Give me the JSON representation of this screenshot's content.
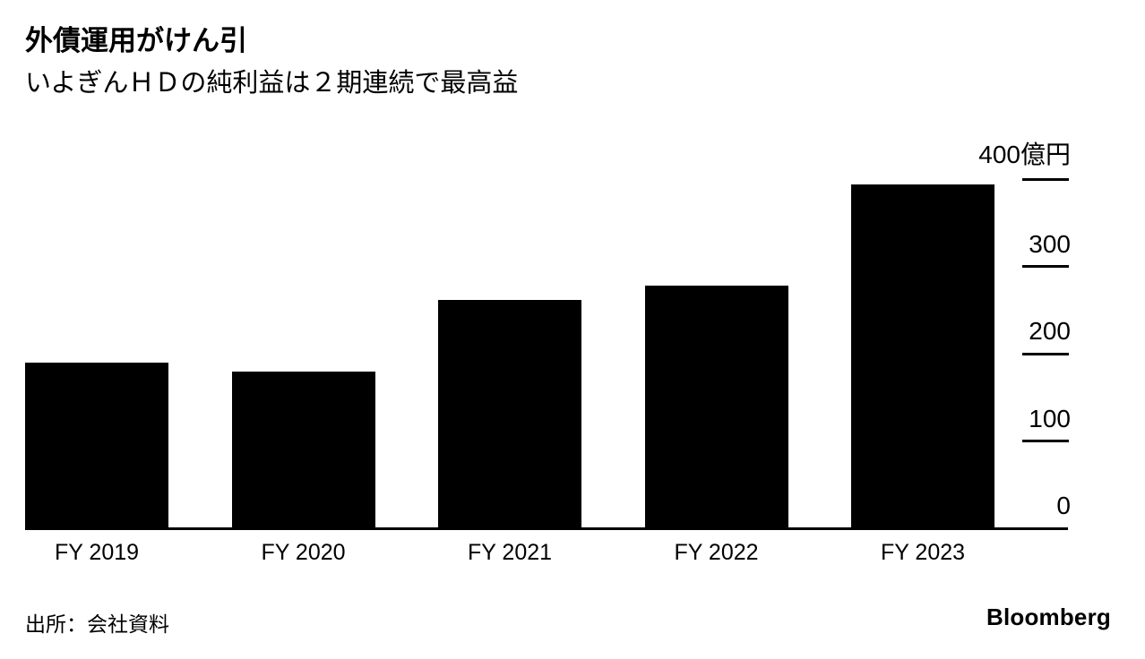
{
  "header": {
    "title": "外債運用がけん引",
    "subtitle": "いよぎんＨＤの純利益は２期連続で最高益"
  },
  "chart_data": {
    "type": "bar",
    "categories": [
      "FY 2019",
      "FY 2020",
      "FY 2021",
      "FY 2022",
      "FY 2023"
    ],
    "values": [
      190,
      180,
      262,
      278,
      394
    ],
    "title": "外債運用がけん引",
    "subtitle": "いよぎんＨＤの純利益は２期連続で最高益",
    "xlabel": "",
    "ylabel": "億円",
    "ylim": [
      0,
      400
    ],
    "yticks": [
      {
        "value": 400,
        "label": "400億円"
      },
      {
        "value": 300,
        "label": "300"
      },
      {
        "value": 200,
        "label": "200"
      },
      {
        "value": 100,
        "label": "100"
      },
      {
        "value": 0,
        "label": "0"
      }
    ],
    "bar_color": "#000000",
    "grid": false,
    "legend": "none",
    "axis_position": "right"
  },
  "footer": {
    "source": "出所：会社資料",
    "brand": "Bloomberg"
  }
}
